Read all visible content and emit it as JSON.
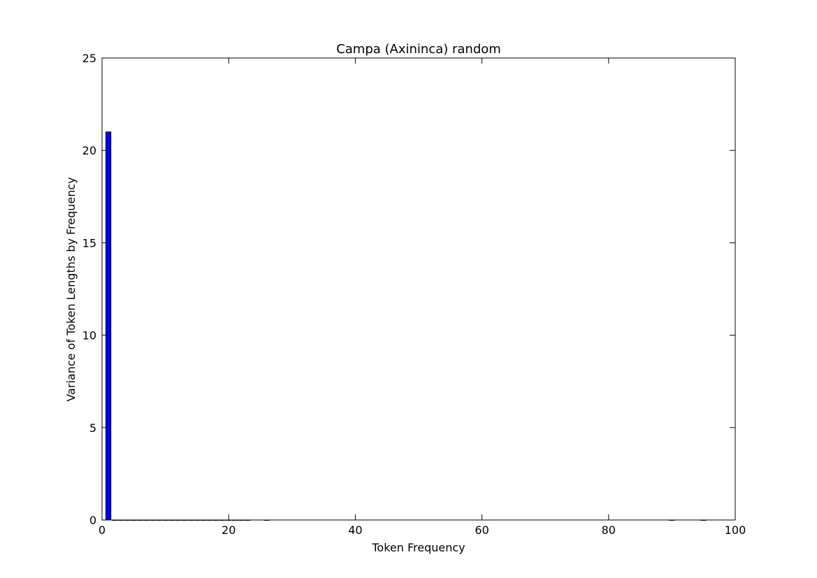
{
  "chart_data": {
    "type": "bar",
    "title": "Campa (Axininca) random",
    "xlabel": "Token Frequency",
    "ylabel": "Variance of Token Lengths by Frequency",
    "xlim": [
      0,
      100
    ],
    "ylim": [
      0,
      25
    ],
    "xticks": [
      0,
      20,
      40,
      60,
      80,
      100
    ],
    "yticks": [
      0,
      5,
      10,
      15,
      20,
      25
    ],
    "grid": false,
    "bar_width": 0.8,
    "bar_color": "#0000ff",
    "bars": [
      {
        "x": 1,
        "value": 21.0
      },
      {
        "x": 2,
        "value": 0.0
      },
      {
        "x": 3,
        "value": 0.0
      },
      {
        "x": 4,
        "value": 0.0
      },
      {
        "x": 5,
        "value": 0.0
      },
      {
        "x": 6,
        "value": 0.0
      },
      {
        "x": 7,
        "value": 0.0
      },
      {
        "x": 8,
        "value": 0.0
      },
      {
        "x": 9,
        "value": 0.0
      },
      {
        "x": 10,
        "value": 0.0
      },
      {
        "x": 11,
        "value": 0.0
      },
      {
        "x": 12,
        "value": 0.0
      },
      {
        "x": 13,
        "value": 0.0
      },
      {
        "x": 14,
        "value": 0.0
      },
      {
        "x": 15,
        "value": 0.0
      },
      {
        "x": 16,
        "value": 0.0
      },
      {
        "x": 17,
        "value": 0.0
      },
      {
        "x": 18,
        "value": 0.0
      },
      {
        "x": 19,
        "value": 0.0
      },
      {
        "x": 20,
        "value": 0.0
      },
      {
        "x": 21,
        "value": 0.0
      },
      {
        "x": 22,
        "value": 0.0
      },
      {
        "x": 23,
        "value": 0.0
      },
      {
        "x": 26,
        "value": 0.0
      },
      {
        "x": 90,
        "value": 0.0
      },
      {
        "x": 95,
        "value": 0.0
      }
    ]
  }
}
